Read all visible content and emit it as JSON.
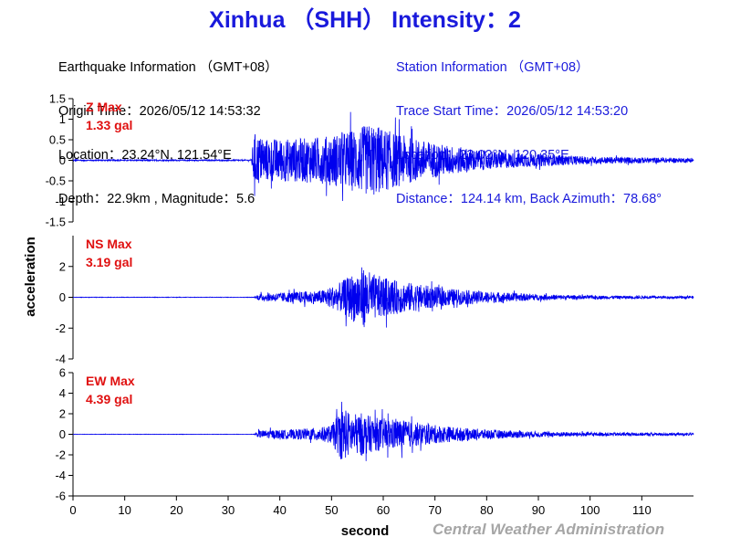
{
  "title": "Xinhua （SHH） Intensity：2",
  "earthquake_info": {
    "heading": "Earthquake Information （GMT+08）",
    "origin_time": "Origin Time：2026/05/12 14:53:32",
    "location": "Location：23.24°N, 121.54°E",
    "depth_magnitude": "Depth：22.9km , Magnitude：5.6"
  },
  "station_info": {
    "heading": "Station Information （GMT+08）",
    "trace_start": "Trace Start Time：2026/05/12 14:53:20",
    "location": "Location：23.02°N, 120.35°E",
    "distance": "Distance：124.14 km, Back Azimuth：78.68°"
  },
  "credit": "Central Weather Administration",
  "colors": {
    "trace": "#0000ee",
    "title": "#1a1adc",
    "label": "#e01010",
    "credit": "#a6a6a6"
  },
  "chart_data": {
    "type": "line",
    "xlabel": "second",
    "ylabel": "acceleration",
    "xlim": [
      0,
      120
    ],
    "xticks": [
      0,
      10,
      20,
      30,
      40,
      50,
      60,
      70,
      80,
      90,
      100,
      110
    ],
    "panels": [
      {
        "name": "Z",
        "label": "Z Max",
        "max_text": "1.33 gal",
        "ylim": [
          -1.5,
          1.5
        ],
        "yticks": [
          -1.5,
          -1,
          -0.5,
          0,
          0.5,
          1,
          1.5
        ],
        "envelope": [
          [
            0,
            0.02
          ],
          [
            34.5,
            0.02
          ],
          [
            35,
            0.9
          ],
          [
            37,
            0.7
          ],
          [
            42,
            0.7
          ],
          [
            48,
            0.75
          ],
          [
            52,
            0.9
          ],
          [
            56,
            1.1
          ],
          [
            58,
            1.2
          ],
          [
            62,
            0.9
          ],
          [
            66,
            0.7
          ],
          [
            72,
            0.5
          ],
          [
            80,
            0.3
          ],
          [
            90,
            0.2
          ],
          [
            100,
            0.12
          ],
          [
            119,
            0.07
          ]
        ]
      },
      {
        "name": "NS",
        "label": "NS Max",
        "max_text": "3.19 gal",
        "ylim": [
          -4,
          4
        ],
        "yticks": [
          -4,
          -2,
          0,
          2
        ],
        "envelope": [
          [
            0,
            0.02
          ],
          [
            35,
            0.02
          ],
          [
            36,
            0.3
          ],
          [
            42,
            0.45
          ],
          [
            48,
            0.6
          ],
          [
            51,
            1.1
          ],
          [
            53,
            1.7
          ],
          [
            56,
            2.7
          ],
          [
            58,
            2.0
          ],
          [
            62,
            1.5
          ],
          [
            66,
            1.2
          ],
          [
            70,
            0.9
          ],
          [
            76,
            0.6
          ],
          [
            84,
            0.4
          ],
          [
            90,
            0.25
          ],
          [
            100,
            0.15
          ],
          [
            119,
            0.1
          ]
        ]
      },
      {
        "name": "EW",
        "label": "EW Max",
        "max_text": "4.39 gal",
        "ylim": [
          -6,
          6
        ],
        "yticks": [
          -6,
          -4,
          -2,
          0,
          2,
          4,
          6
        ],
        "envelope": [
          [
            0,
            0.02
          ],
          [
            35,
            0.02
          ],
          [
            36,
            0.5
          ],
          [
            42,
            0.6
          ],
          [
            48,
            0.9
          ],
          [
            50,
            1.2
          ],
          [
            52,
            3.5
          ],
          [
            54,
            2.6
          ],
          [
            56,
            2.8
          ],
          [
            58,
            2.2
          ],
          [
            62,
            2.0
          ],
          [
            66,
            1.6
          ],
          [
            70,
            1.2
          ],
          [
            76,
            0.8
          ],
          [
            84,
            0.5
          ],
          [
            90,
            0.35
          ],
          [
            100,
            0.25
          ],
          [
            119,
            0.15
          ]
        ]
      }
    ]
  }
}
